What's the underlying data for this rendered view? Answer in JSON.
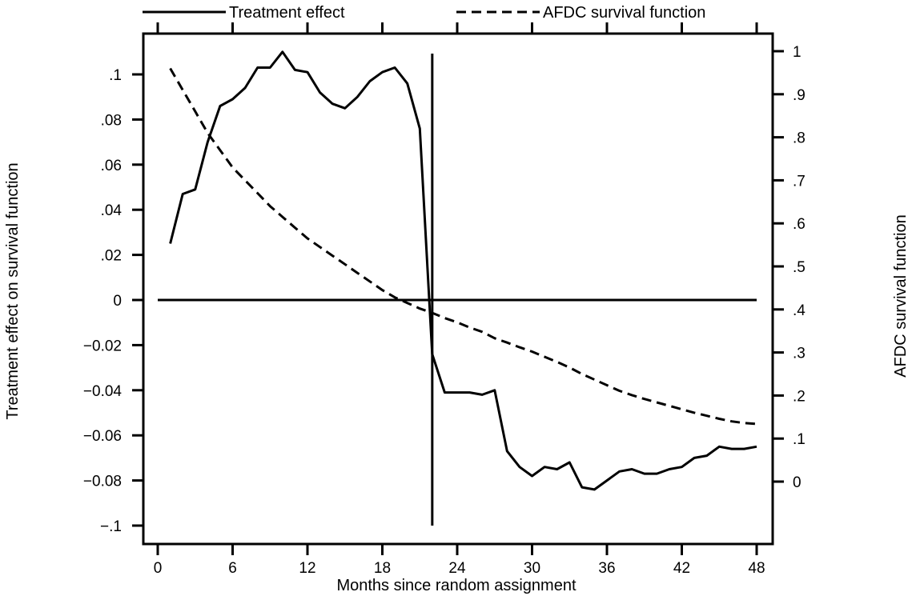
{
  "chart_data": {
    "type": "line",
    "title": "",
    "xlabel": "Months since random assignment",
    "ylabel_left": "Treatment effect on survival function",
    "ylabel_right": "AFDC survival function",
    "xlim": [
      0,
      48
    ],
    "ylim_left": [
      -0.1,
      0.1
    ],
    "ylim_right": [
      0,
      1
    ],
    "x_ticks": [
      0,
      6,
      12,
      18,
      24,
      30,
      36,
      42,
      48
    ],
    "x_tick_labels": [
      "0",
      "6",
      "12",
      "18",
      "24",
      "30",
      "36",
      "42",
      "48"
    ],
    "y_left_ticks": [
      0.1,
      0.08,
      0.06,
      0.04,
      0.02,
      0,
      -0.02,
      -0.04,
      -0.06,
      -0.08,
      -0.1
    ],
    "y_left_tick_labels": [
      ".1",
      ".08",
      ".06",
      ".04",
      ".02",
      "0",
      "−0.02",
      "−0.04",
      "−0.06",
      "−0.08",
      "−.1"
    ],
    "y_right_ticks": [
      1,
      0.9,
      0.8,
      0.7,
      0.6,
      0.5,
      0.4,
      0.3,
      0.2,
      0.1,
      0
    ],
    "y_right_tick_labels": [
      "1",
      ".9",
      ".8",
      ".7",
      ".6",
      ".5",
      ".4",
      ".3",
      ".2",
      ".1",
      "0"
    ],
    "legend_position": "top",
    "grid": false,
    "reference_lines": {
      "horizontal_y_left": 0,
      "vertical_x": 22
    },
    "series": [
      {
        "name": "Treatment effect",
        "axis": "left",
        "style": "solid",
        "color": "#000000",
        "x": [
          1,
          2,
          3,
          4,
          5,
          6,
          7,
          8,
          9,
          10,
          11,
          12,
          13,
          14,
          15,
          16,
          17,
          18,
          19,
          20,
          21,
          22,
          23,
          24,
          25,
          26,
          27,
          28,
          29,
          30,
          31,
          32,
          33,
          34,
          35,
          36,
          37,
          38,
          39,
          40,
          41,
          42,
          43,
          44,
          45,
          46,
          47,
          48
        ],
        "values": [
          0.025,
          0.047,
          0.049,
          0.07,
          0.086,
          0.089,
          0.094,
          0.103,
          0.103,
          0.11,
          0.102,
          0.101,
          0.092,
          0.087,
          0.085,
          0.09,
          0.097,
          0.101,
          0.103,
          0.096,
          0.076,
          -0.024,
          -0.041,
          -0.041,
          -0.041,
          -0.042,
          -0.04,
          -0.067,
          -0.074,
          -0.078,
          -0.074,
          -0.075,
          -0.072,
          -0.083,
          -0.084,
          -0.08,
          -0.076,
          -0.075,
          -0.077,
          -0.077,
          -0.075,
          -0.074,
          -0.07,
          -0.069,
          -0.065,
          -0.066,
          -0.066,
          -0.065
        ]
      },
      {
        "name": "AFDC survival function",
        "axis": "right",
        "style": "dashed",
        "color": "#000000",
        "x": [
          1,
          2,
          3,
          4,
          5,
          6,
          7,
          8,
          9,
          10,
          11,
          12,
          13,
          14,
          15,
          16,
          17,
          18,
          19,
          20,
          21,
          22,
          23,
          24,
          25,
          26,
          27,
          28,
          29,
          30,
          31,
          32,
          33,
          34,
          35,
          36,
          37,
          38,
          39,
          40,
          41,
          42,
          43,
          44,
          45,
          46,
          47,
          48
        ],
        "values": [
          0.96,
          0.91,
          0.86,
          0.81,
          0.77,
          0.73,
          0.7,
          0.67,
          0.64,
          0.615,
          0.59,
          0.565,
          0.545,
          0.525,
          0.505,
          0.485,
          0.465,
          0.445,
          0.428,
          0.415,
          0.402,
          0.392,
          0.38,
          0.37,
          0.358,
          0.348,
          0.333,
          0.323,
          0.312,
          0.302,
          0.29,
          0.278,
          0.265,
          0.25,
          0.237,
          0.224,
          0.211,
          0.201,
          0.192,
          0.184,
          0.176,
          0.168,
          0.16,
          0.153,
          0.146,
          0.14,
          0.136,
          0.134
        ]
      }
    ]
  }
}
